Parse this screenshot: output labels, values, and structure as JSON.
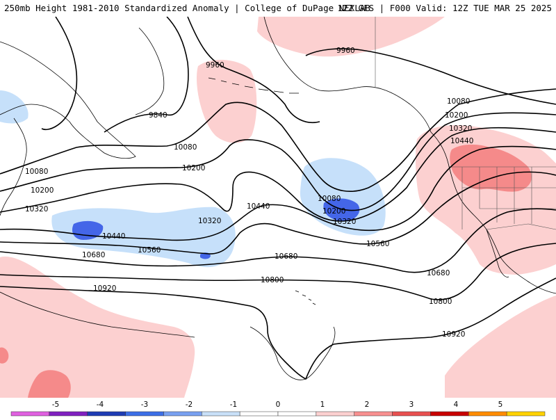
{
  "header": {
    "title_left": "250mb Height 1981-2010 Standardized Anomaly | College of DuPage NEXLAB",
    "title_right": "12Z GFS | F000 Valid: 12Z TUE MAR 25 2025"
  },
  "contour_labels": [
    {
      "id": "9960-a",
      "text": "9960"
    },
    {
      "id": "9960-b",
      "text": "9960"
    },
    {
      "id": "9840",
      "text": "9840"
    },
    {
      "id": "10080-a",
      "text": "10080"
    },
    {
      "id": "10080-b",
      "text": "10080"
    },
    {
      "id": "10080-c",
      "text": "10080"
    },
    {
      "id": "10080-d",
      "text": "10080"
    },
    {
      "id": "10200-a",
      "text": "10200"
    },
    {
      "id": "10200-b",
      "text": "10200"
    },
    {
      "id": "10200-c",
      "text": "10200"
    },
    {
      "id": "10200-d",
      "text": "10200"
    },
    {
      "id": "10320-a",
      "text": "10320"
    },
    {
      "id": "10320-b",
      "text": "10320"
    },
    {
      "id": "10320-c",
      "text": "10320"
    },
    {
      "id": "10320-d",
      "text": "10320"
    },
    {
      "id": "10440-a",
      "text": "10440"
    },
    {
      "id": "10440-b",
      "text": "10440"
    },
    {
      "id": "10440-c",
      "text": "10440"
    },
    {
      "id": "10560-a",
      "text": "10560"
    },
    {
      "id": "10560-b",
      "text": "10560"
    },
    {
      "id": "10680-a",
      "text": "10680"
    },
    {
      "id": "10680-b",
      "text": "10680"
    },
    {
      "id": "10680-c",
      "text": "10680"
    },
    {
      "id": "10800-a",
      "text": "10800"
    },
    {
      "id": "10800-b",
      "text": "10800"
    },
    {
      "id": "10920-a",
      "text": "10920"
    },
    {
      "id": "10920-b",
      "text": "10920"
    }
  ],
  "colorbar": {
    "ticks": [
      "-5",
      "-4",
      "-3",
      "-2",
      "-1",
      "0",
      "1",
      "2",
      "3",
      "4",
      "5"
    ],
    "colors": [
      "#e060e0",
      "#8020c0",
      "#1e3cb4",
      "#3c6ee6",
      "#78a0f0",
      "#c8e0f8",
      "#ffffff",
      "#ffffff",
      "#fcd0d0",
      "#f89090",
      "#e85050",
      "#c80000",
      "#ff8c00",
      "#ffd200"
    ]
  },
  "colors": {
    "strong_negative": "#4466e8",
    "weak_negative": "#c6e0fa",
    "weak_positive": "#fcd0d0",
    "moderate_positive": "#f58a8a"
  }
}
